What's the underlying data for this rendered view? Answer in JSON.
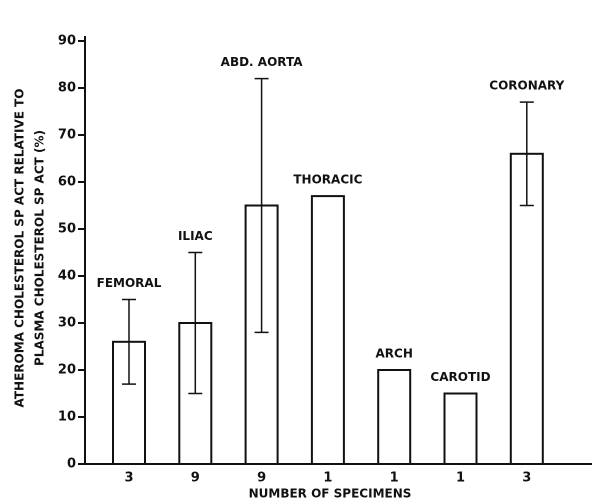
{
  "chart_data": {
    "type": "bar",
    "y_label_lines": [
      "ATHEROMA CHOLESTEROL SP ACT RELATIVE TO",
      "PLASMA CHOLESTEROL SP ACT (%)"
    ],
    "x_label": "NUMBER OF SPECIMENS",
    "categories": [
      "3",
      "9",
      "9",
      "1",
      "1",
      "1",
      "3"
    ],
    "bar_labels": [
      "FEMORAL",
      "ILIAC",
      "ABD. AORTA",
      "THORACIC",
      "ARCH",
      "CAROTID",
      "CORONARY"
    ],
    "values": [
      26,
      30,
      55,
      57,
      20,
      15,
      66
    ],
    "errors": [
      9,
      15,
      27,
      null,
      null,
      null,
      11
    ],
    "color": "#ffffff",
    "ylim": [
      0,
      90
    ],
    "yticks": [
      0,
      10,
      20,
      30,
      40,
      50,
      60,
      70,
      80,
      90
    ],
    "grid": false
  }
}
